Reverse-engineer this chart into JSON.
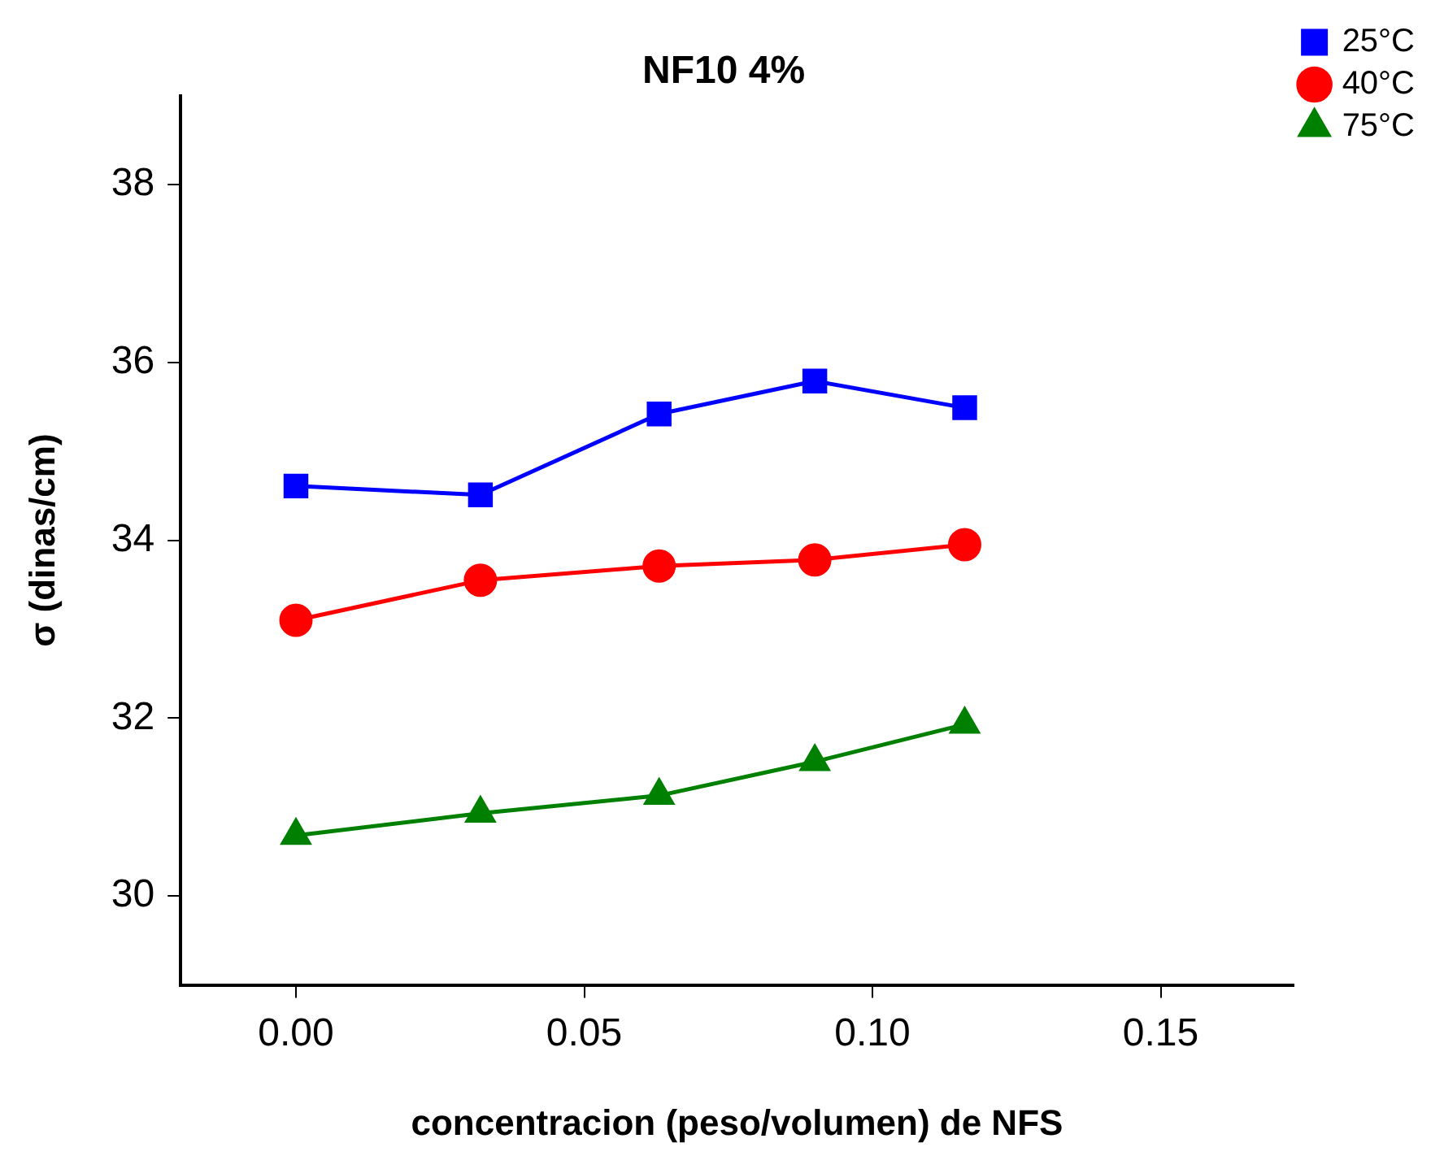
{
  "chart_data": {
    "type": "line",
    "title": "NF10 4%",
    "xlabel": "concentracion (peso/volumen) de NFS",
    "ylabel": "σ (dinas/cm)",
    "x": [
      0,
      0.032,
      0.063,
      0.09,
      0.116
    ],
    "series": [
      {
        "name": "25°C",
        "color": "#0000ff",
        "marker": "square",
        "values": [
          34.61,
          34.51,
          35.42,
          35.79,
          35.49
        ]
      },
      {
        "name": "40°C",
        "color": "#ff0000",
        "marker": "circle",
        "values": [
          33.1,
          33.55,
          33.71,
          33.78,
          33.95
        ]
      },
      {
        "name": "75°C",
        "color": "#008000",
        "marker": "triangle",
        "values": [
          30.68,
          30.93,
          31.13,
          31.51,
          31.93
        ]
      }
    ],
    "xlim": [
      -0.02,
      0.173
    ],
    "xticks": [
      {
        "value": 0,
        "label": "0.00"
      },
      {
        "value": 0.05,
        "label": "0.05"
      },
      {
        "value": 0.1,
        "label": "0.10"
      },
      {
        "value": 0.15,
        "label": "0.15"
      }
    ],
    "ylim": [
      29,
      39
    ],
    "yticks": [
      30,
      32,
      34,
      36,
      38
    ],
    "grid": false,
    "legend": "right",
    "line_style": "solid"
  }
}
